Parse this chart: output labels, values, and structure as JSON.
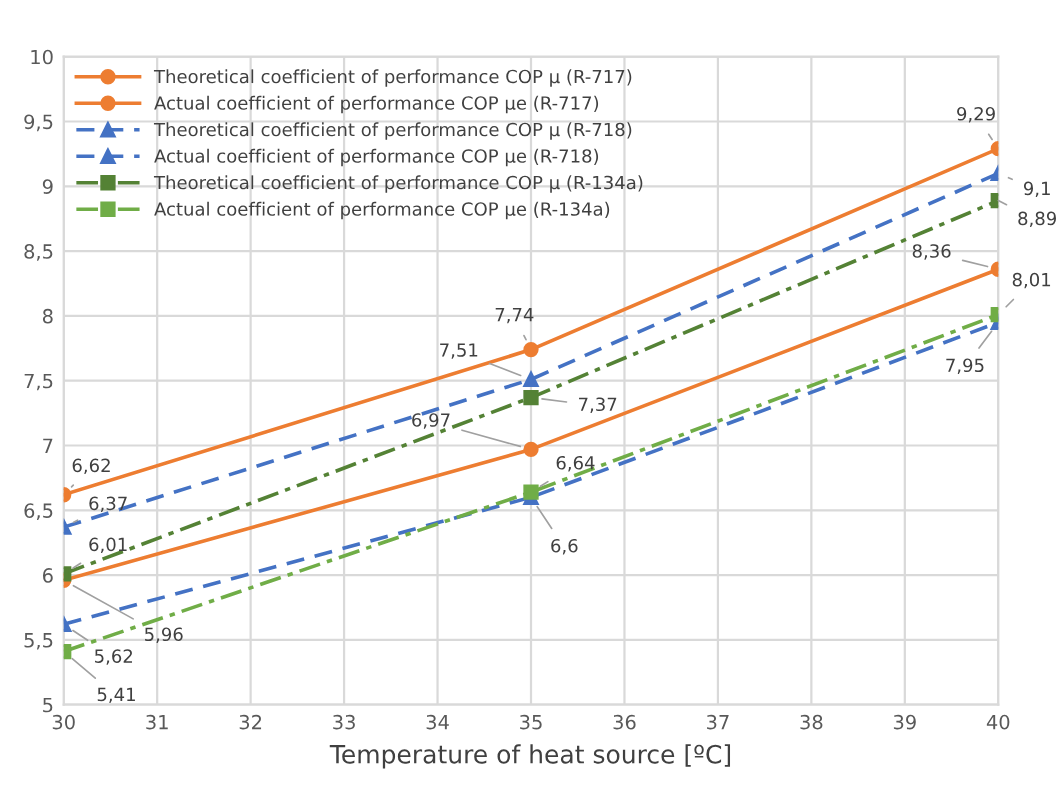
{
  "chart_data": {
    "type": "line",
    "xlabel": "Temperature of heat source [ºC]",
    "x": [
      30,
      35,
      40
    ],
    "xlim": [
      30,
      40
    ],
    "xticks": [
      30,
      31,
      32,
      33,
      34,
      35,
      36,
      37,
      38,
      39,
      40
    ],
    "ylim": [
      5,
      10
    ],
    "yticks": [
      5,
      {
        "value": 5.5,
        "label": "5,5"
      },
      6,
      {
        "value": 6.5,
        "label": "6,5"
      },
      7,
      {
        "value": 7.5,
        "label": "7,5"
      },
      8,
      {
        "value": 8.5,
        "label": "8,5"
      },
      9,
      {
        "value": 9.5,
        "label": "9,5"
      },
      10
    ],
    "grid": true,
    "legend": "top left",
    "series": [
      {
        "name": "Theoretical coefficient of performance COP μ (R-717)",
        "color": "#ed7d31",
        "values": [
          6.62,
          7.74,
          9.29
        ],
        "value_labels": [
          "6,62",
          "7,74",
          "9,29"
        ],
        "marker": "circle",
        "line_style": "solid"
      },
      {
        "name": "Actual coefficient of performance COP μe (R-717)",
        "color": "#ed7d31",
        "values": [
          5.96,
          6.97,
          8.36
        ],
        "value_labels": [
          "5,96",
          "6,97",
          "8,36"
        ],
        "marker": "circle",
        "line_style": "solid"
      },
      {
        "name": "Theoretical coefficient of performance COP μ (R-718)",
        "color": "#4472c4",
        "values": [
          6.37,
          7.51,
          9.1
        ],
        "value_labels": [
          "6,37",
          "7,51",
          "9,1"
        ],
        "marker": "triangle",
        "line_style": "dashed"
      },
      {
        "name": "Actual coefficient of performance COP μe (R-718)",
        "color": "#4472c4",
        "values": [
          5.62,
          6.6,
          7.95
        ],
        "value_labels": [
          "5,62",
          "6,6",
          "7,95"
        ],
        "marker": "triangle",
        "line_style": "dashed"
      },
      {
        "name": "Theoretical coefficient of performance COP μ (R-134a)",
        "color": "#548235",
        "values": [
          6.01,
          7.37,
          8.89
        ],
        "value_labels": [
          "6,01",
          "7,37",
          "8,89"
        ],
        "marker": "square",
        "line_style": "dashdot"
      },
      {
        "name": "Actual coefficient of performance COP μe (R-134a)",
        "color": "#70ad47",
        "values": [
          5.41,
          6.64,
          8.01
        ],
        "value_labels": [
          "5,41",
          "6,64",
          "8,01"
        ],
        "marker": "square",
        "line_style": "dashdot"
      }
    ]
  }
}
